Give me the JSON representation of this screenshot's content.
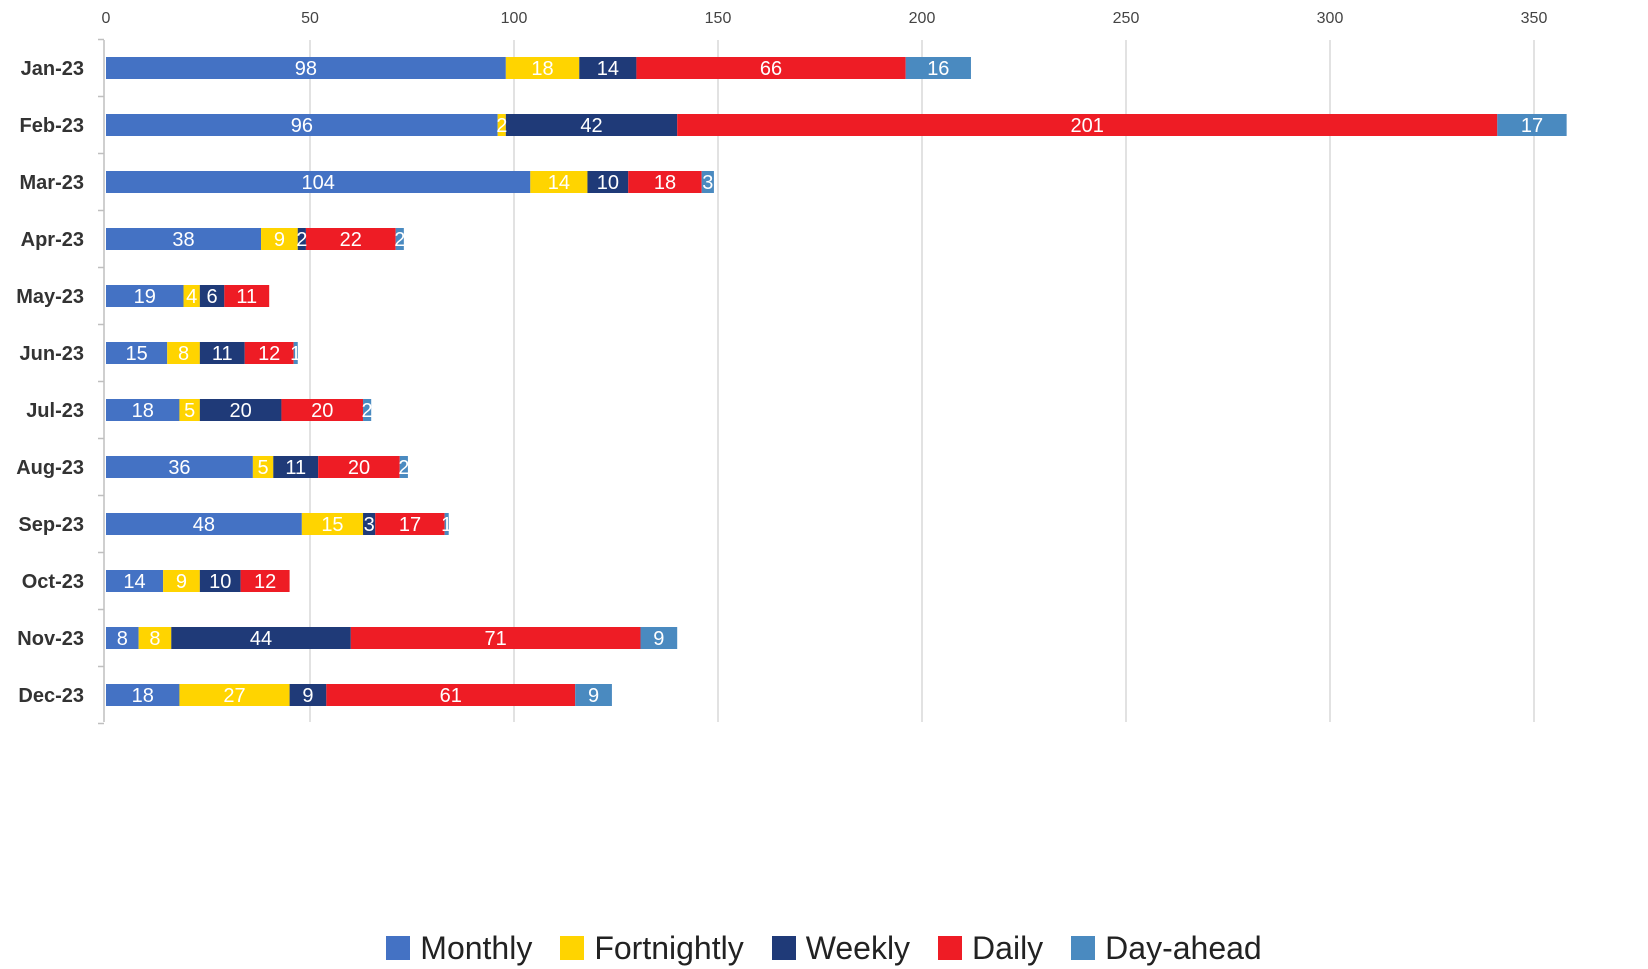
{
  "chart_data": {
    "type": "bar",
    "orientation": "horizontal",
    "stacked": true,
    "categories": [
      "Jan-23",
      "Feb-23",
      "Mar-23",
      "Apr-23",
      "May-23",
      "Jun-23",
      "Jul-23",
      "Aug-23",
      "Sep-23",
      "Oct-23",
      "Nov-23",
      "Dec-23"
    ],
    "series": [
      {
        "name": "Monthly",
        "color": "#4472C4",
        "values": [
          98,
          96,
          104,
          38,
          19,
          15,
          18,
          36,
          48,
          14,
          8,
          18
        ]
      },
      {
        "name": "Fortnightly",
        "color": "#FFD400",
        "values": [
          18,
          2,
          14,
          9,
          4,
          8,
          5,
          5,
          15,
          9,
          8,
          27
        ]
      },
      {
        "name": "Weekly",
        "color": "#1F3A78",
        "values": [
          14,
          42,
          10,
          2,
          6,
          11,
          20,
          11,
          3,
          10,
          44,
          9
        ]
      },
      {
        "name": "Daily",
        "color": "#EE1C25",
        "values": [
          66,
          201,
          18,
          22,
          11,
          12,
          20,
          20,
          17,
          12,
          71,
          61
        ]
      },
      {
        "name": "Day-ahead",
        "color": "#4A8AC0",
        "values": [
          16,
          17,
          3,
          2,
          0,
          1,
          2,
          2,
          1,
          0,
          9,
          9
        ]
      }
    ],
    "xticks": [
      0,
      50,
      100,
      150,
      200,
      250,
      300,
      350
    ],
    "xlim": [
      0,
      350
    ],
    "xaxis_position": "top",
    "grid": true,
    "legend_position": "bottom",
    "title": "",
    "xlabel": "",
    "ylabel": ""
  }
}
